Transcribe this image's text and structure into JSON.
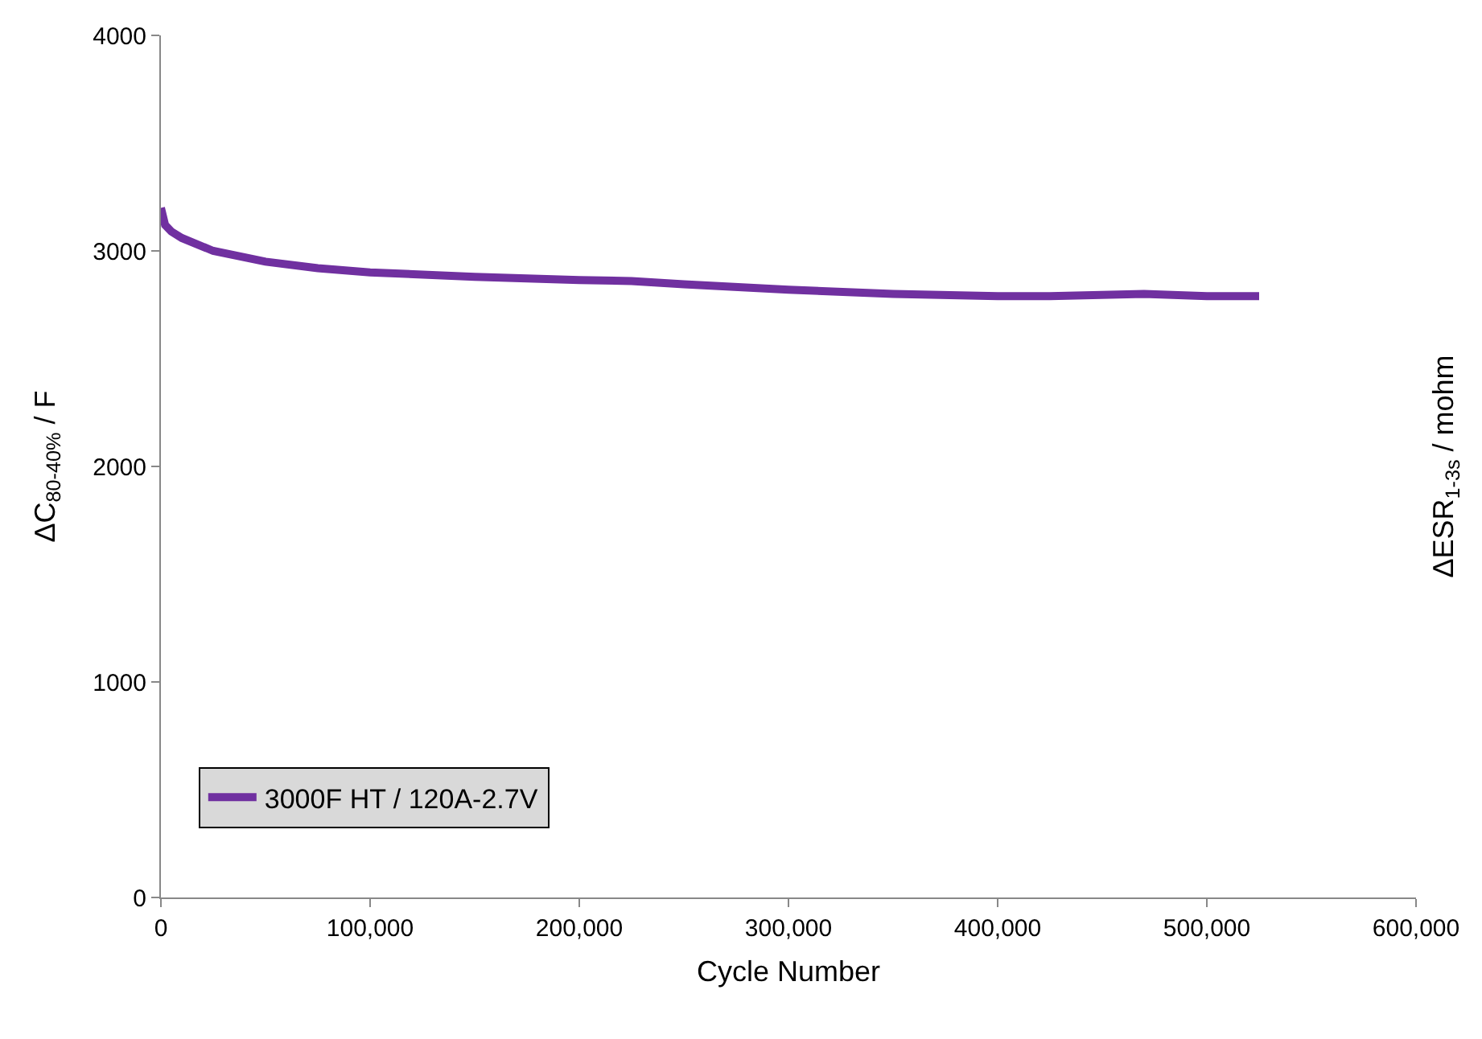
{
  "chart_data": {
    "type": "line",
    "xlabel": "Cycle Number",
    "ylabel": "ΔC$_{80-40%}$ / F",
    "y2label": "ΔESR$_{1-3s}$ / mohm",
    "x": [
      0,
      2000,
      5000,
      10000,
      25000,
      50000,
      75000,
      100000,
      150000,
      200000,
      225000,
      250000,
      300000,
      350000,
      400000,
      425000,
      470000,
      500000,
      525000
    ],
    "series": [
      {
        "name": "3000F HT / 120A-2.7V",
        "color": "#7030a0",
        "values": [
          3200,
          3120,
          3090,
          3060,
          3000,
          2950,
          2920,
          2900,
          2880,
          2865,
          2860,
          2845,
          2820,
          2800,
          2790,
          2790,
          2800,
          2790,
          2790
        ]
      }
    ],
    "xlim": [
      0,
      600000
    ],
    "xticks": [
      {
        "value": 0,
        "label": "0"
      },
      {
        "value": 100000,
        "label": "100,000"
      },
      {
        "value": 200000,
        "label": "200,000"
      },
      {
        "value": 300000,
        "label": "300,000"
      },
      {
        "value": 400000,
        "label": "400,000"
      },
      {
        "value": 500000,
        "label": "500,000"
      },
      {
        "value": 600000,
        "label": "600,000"
      }
    ],
    "ylim": [
      0,
      4000
    ],
    "yticks": [
      0,
      1000,
      2000,
      3000,
      4000
    ],
    "grid": false,
    "legend": "bottom left",
    "marker": "none",
    "line_style": "solid"
  }
}
